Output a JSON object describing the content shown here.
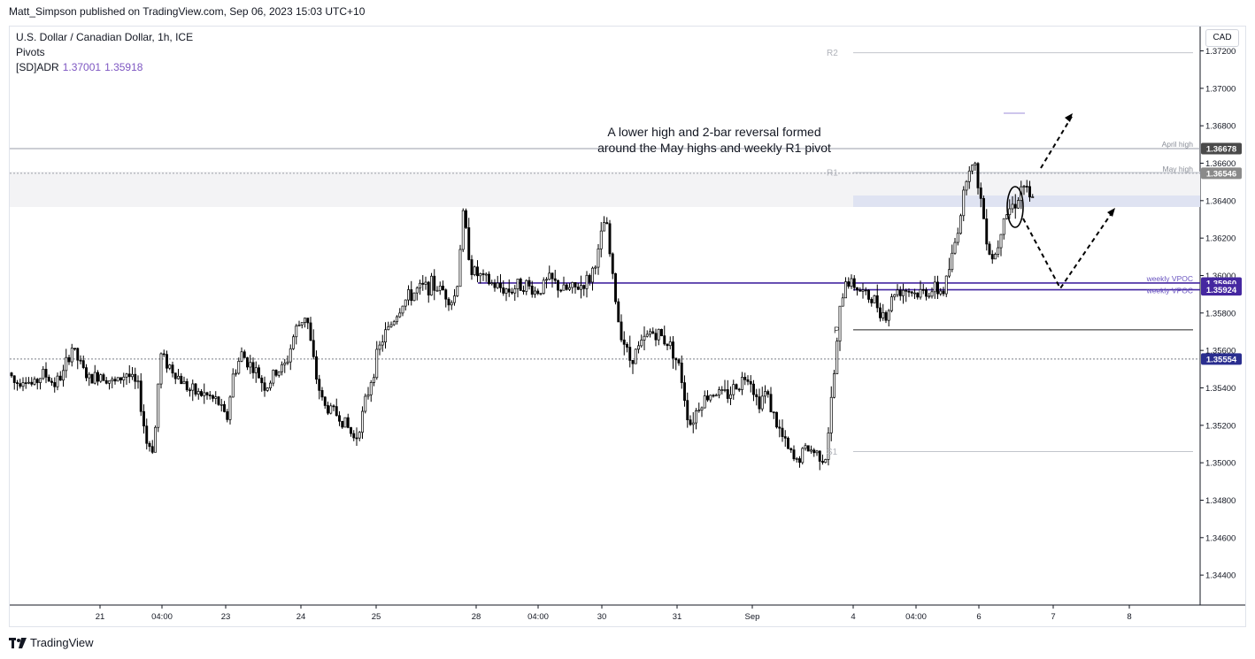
{
  "header": {
    "published": "Matt_Simpson published on TradingView.com, Sep 06, 2023 15:03 UTC+10"
  },
  "legend": {
    "symbol": "U.S. Dollar / Canadian Dollar, 1h, ICE",
    "indicator1": "Pivots",
    "indicator2_name": "[SD]ADR",
    "indicator2_v1": "1.37001",
    "indicator2_v2": "1.35918"
  },
  "currency_button": "CAD",
  "footer": {
    "brand": "TradingView"
  },
  "colors": {
    "purple": "#4527a0",
    "badge_dark": "#4a4a4a",
    "badge_grey": "#8a8a8a",
    "badge_blue": "#2a2e8f"
  },
  "chart_data": {
    "type": "candlestick",
    "annotation": [
      "A lower high and 2-bar reversal formed",
      "around the May highs and weekly R1 pivot"
    ],
    "y_ticks": [
      1.372,
      1.37,
      1.368,
      1.366,
      1.364,
      1.362,
      1.36,
      1.358,
      1.356,
      1.354,
      1.352,
      1.35,
      1.348,
      1.346,
      1.344
    ],
    "y_range": [
      1.3424,
      1.3733
    ],
    "x_ticks": [
      "21",
      "04:00",
      "23",
      "24",
      "25",
      "28",
      "04:00",
      "30",
      "31",
      "Sep",
      "4",
      "04:00",
      "6",
      "7",
      "8"
    ],
    "levels": [
      {
        "name": "April high",
        "price": "1.36678",
        "value": 1.36678
      },
      {
        "name": "May high",
        "price": "1.36546",
        "value": 1.36546
      },
      {
        "name": "weekly VPOC",
        "price": "1.35960",
        "value": 1.3596
      },
      {
        "name": "weekly VPOC",
        "price": "1.35924",
        "value": 1.35924
      },
      {
        "name": "",
        "price": "1.35554",
        "value": 1.35554
      }
    ],
    "pivots": [
      {
        "label": "R2",
        "value": 1.3719
      },
      {
        "label": "R1",
        "value": 1.3655
      },
      {
        "label": "P",
        "value": 1.3571
      },
      {
        "label": "S1",
        "value": 1.3506
      }
    ],
    "path": [
      [
        0,
        1.3548
      ],
      [
        6,
        1.3542
      ],
      [
        16,
        1.3546
      ],
      [
        26,
        1.3541
      ],
      [
        38,
        1.3548
      ],
      [
        50,
        1.3542
      ],
      [
        60,
        1.3547
      ],
      [
        70,
        1.3562
      ],
      [
        80,
        1.3552
      ],
      [
        90,
        1.3544
      ],
      [
        104,
        1.3548
      ],
      [
        118,
        1.3542
      ],
      [
        132,
        1.3548
      ],
      [
        145,
        1.354
      ],
      [
        155,
        1.351
      ],
      [
        163,
        1.3508
      ],
      [
        170,
        1.3558
      ],
      [
        180,
        1.3552
      ],
      [
        192,
        1.3545
      ],
      [
        205,
        1.3538
      ],
      [
        222,
        1.3536
      ],
      [
        236,
        1.3532
      ],
      [
        245,
        1.3522
      ],
      [
        252,
        1.3546
      ],
      [
        262,
        1.3558
      ],
      [
        276,
        1.355
      ],
      [
        290,
        1.354
      ],
      [
        300,
        1.3548
      ],
      [
        312,
        1.3552
      ],
      [
        322,
        1.357
      ],
      [
        335,
        1.358
      ],
      [
        345,
        1.3548
      ],
      [
        355,
        1.353
      ],
      [
        365,
        1.3528
      ],
      [
        378,
        1.3522
      ],
      [
        390,
        1.3512
      ],
      [
        400,
        1.3528
      ],
      [
        410,
        1.3548
      ],
      [
        420,
        1.3565
      ],
      [
        432,
        1.3575
      ],
      [
        445,
        1.3586
      ],
      [
        460,
        1.3592
      ],
      [
        475,
        1.3595
      ],
      [
        490,
        1.3592
      ],
      [
        500,
        1.3586
      ],
      [
        505,
        1.3592
      ],
      [
        512,
        1.3633
      ],
      [
        522,
        1.3603
      ],
      [
        535,
        1.3598
      ],
      [
        550,
        1.3594
      ],
      [
        565,
        1.3592
      ],
      [
        580,
        1.3596
      ],
      [
        595,
        1.3591
      ],
      [
        610,
        1.3598
      ],
      [
        625,
        1.3592
      ],
      [
        640,
        1.3593
      ],
      [
        655,
        1.3598
      ],
      [
        665,
        1.3612
      ],
      [
        673,
        1.3632
      ],
      [
        680,
        1.3603
      ],
      [
        688,
        1.3575
      ],
      [
        700,
        1.3555
      ],
      [
        712,
        1.3562
      ],
      [
        724,
        1.357
      ],
      [
        735,
        1.3568
      ],
      [
        748,
        1.3562
      ],
      [
        758,
        1.3548
      ],
      [
        768,
        1.352
      ],
      [
        780,
        1.3532
      ],
      [
        795,
        1.3538
      ],
      [
        810,
        1.3536
      ],
      [
        823,
        1.3542
      ],
      [
        835,
        1.3548
      ],
      [
        845,
        1.3532
      ],
      [
        855,
        1.3538
      ],
      [
        865,
        1.3522
      ],
      [
        878,
        1.3508
      ],
      [
        888,
        1.35
      ],
      [
        900,
        1.3508
      ],
      [
        912,
        1.3505
      ],
      [
        922,
        1.3503
      ],
      [
        932,
        1.355
      ],
      [
        938,
        1.358
      ],
      [
        944,
        1.3598
      ],
      [
        955,
        1.3595
      ],
      [
        965,
        1.359
      ],
      [
        978,
        1.3586
      ],
      [
        990,
        1.3578
      ],
      [
        1000,
        1.3592
      ],
      [
        1012,
        1.3593
      ],
      [
        1025,
        1.359
      ],
      [
        1040,
        1.3592
      ],
      [
        1055,
        1.3592
      ],
      [
        1065,
        1.361
      ],
      [
        1075,
        1.3635
      ],
      [
        1083,
        1.366
      ],
      [
        1092,
        1.3656
      ],
      [
        1100,
        1.3632
      ],
      [
        1108,
        1.361
      ],
      [
        1115,
        1.3612
      ],
      [
        1122,
        1.3632
      ],
      [
        1130,
        1.3636
      ],
      [
        1138,
        1.364
      ],
      [
        1145,
        1.365
      ],
      [
        1152,
        1.364
      ],
      [
        1158,
        1.364
      ]
    ]
  }
}
